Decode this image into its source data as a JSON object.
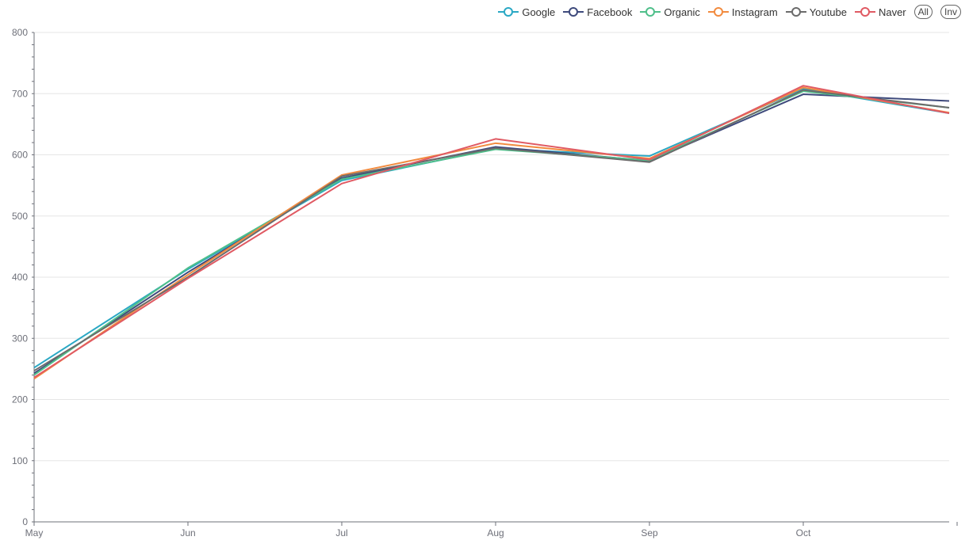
{
  "chart_data": {
    "type": "line",
    "title": "",
    "xlabel": "",
    "ylabel": "",
    "categories": [
      "May",
      "Jun",
      "Jul",
      "Aug",
      "Sep",
      "Oct",
      ""
    ],
    "ylim": [
      0,
      800
    ],
    "y_ticks": [
      0,
      100,
      200,
      300,
      400,
      500,
      600,
      700,
      800
    ],
    "y_tick_labels": [
      "0",
      "100",
      "200",
      "300",
      "400",
      "500",
      "600",
      "700",
      "800"
    ],
    "grid": true,
    "legend_position": "top-right",
    "series": [
      {
        "name": "Google",
        "color": "#2aa8c4",
        "values": [
          252,
          413,
          558,
          610,
          598,
          708,
          668
        ]
      },
      {
        "name": "Facebook",
        "color": "#3e4a7c",
        "values": [
          243,
          408,
          562,
          613,
          590,
          699,
          688
        ]
      },
      {
        "name": "Organic",
        "color": "#4fbf8a",
        "values": [
          240,
          415,
          560,
          609,
          591,
          704,
          677
        ]
      },
      {
        "name": "Instagram",
        "color": "#f28b3f",
        "values": [
          234,
          404,
          567,
          619,
          594,
          710,
          669
        ]
      },
      {
        "name": "Youtube",
        "color": "#6b6b6b",
        "values": [
          247,
          400,
          565,
          611,
          588,
          706,
          677
        ]
      },
      {
        "name": "Naver",
        "color": "#e05a63",
        "values": [
          236,
          398,
          553,
          626,
          592,
          713,
          668
        ]
      }
    ]
  },
  "legend_buttons": {
    "all": "All",
    "inv": "Inv"
  }
}
